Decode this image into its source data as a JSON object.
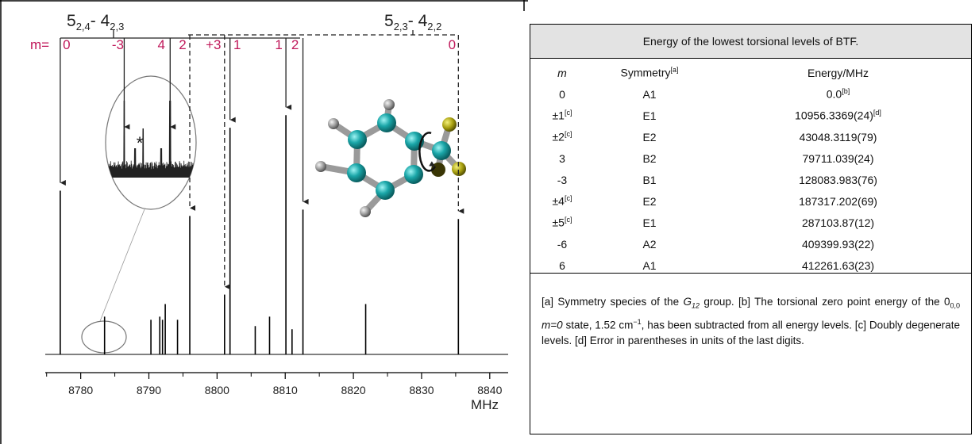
{
  "chart_data": {
    "type": "stick",
    "x_label": "MHz",
    "xlim": [
      8774.8,
      8842.7
    ],
    "xticks": [
      8780,
      8790,
      8800,
      8810,
      8820,
      8830,
      8840
    ],
    "minor_xticks": [
      8775,
      8785,
      8795,
      8805,
      8815,
      8825,
      8835
    ],
    "ylim": [
      0,
      100
    ],
    "color": "#000000",
    "label_color": "#c0185a",
    "x": [
      8777.0,
      8783.5,
      8790.3,
      8791.6,
      8792.0,
      8792.4,
      8794.2,
      8796.0,
      8801.1,
      8801.9,
      8805.6,
      8807.7,
      8810.1,
      8811.0,
      8812.6,
      8821.8,
      8835.4
    ],
    "values": [
      52,
      12,
      11,
      12,
      11,
      16,
      11,
      44,
      19,
      72,
      9,
      12,
      76,
      8,
      46,
      16,
      43
    ],
    "transitions": [
      {
        "parts": [
          {
            "text": "5"
          },
          {
            "text": "2,4",
            "sub": true
          },
          {
            "text": "- 4"
          },
          {
            "text": "2,3",
            "sub": true
          }
        ],
        "style": "solid"
      },
      {
        "parts": [
          {
            "text": "5"
          },
          {
            "text": "2,3",
            "sub": true
          },
          {
            "text": "- 4"
          },
          {
            "text": "2,2",
            "sub": true
          }
        ],
        "style": "dashed"
      }
    ],
    "m_prefix": "m=",
    "arrows": [
      {
        "label": "0",
        "x": 8777.0,
        "group": 0
      },
      {
        "label": "-3",
        "x": 8783.65,
        "group": 0,
        "inset": true
      },
      {
        "label": "4",
        "x": 8787.7,
        "group": 0,
        "inset": true
      },
      {
        "label": "2",
        "x": 8796.0,
        "group": 1
      },
      {
        "label": "+3",
        "x": 8801.1,
        "group": 1
      },
      {
        "label": "1",
        "x": 8801.9,
        "group": 0
      },
      {
        "label": "1",
        "x": 8810.1,
        "group": 0
      },
      {
        "label": "2",
        "x": 8812.6,
        "group": 0
      },
      {
        "label": "0",
        "x": 8835.4,
        "group": 1
      }
    ],
    "inset": {
      "xlim": [
        8782.5,
        8789.5
      ],
      "marker": "*"
    }
  },
  "table": {
    "title": "Energy of the lowest torsional levels of BTF.",
    "columns": [
      {
        "text": "m",
        "italic": true
      },
      {
        "text": "Symmetry",
        "sup": "[a]"
      },
      {
        "text": "Energy/MHz"
      }
    ],
    "rows": [
      [
        "0",
        "A1",
        {
          "text": "0.0",
          "sup": "[b]"
        }
      ],
      [
        {
          "text": "±1",
          "sup": "[c]"
        },
        "E1",
        {
          "text": "10956.3369(24)",
          "sup": "[d]"
        }
      ],
      [
        {
          "text": "±2",
          "sup": "[c]"
        },
        "E2",
        "43048.3119(79)"
      ],
      [
        "3",
        "B2",
        "79711.039(24)"
      ],
      [
        "-3",
        "B1",
        "128083.983(76)"
      ],
      [
        {
          "text": "±4",
          "sup": "[c]"
        },
        "E2",
        "187317.202(69)"
      ],
      [
        {
          "text": "±5",
          "sup": "[c]"
        },
        "E1",
        "287103.87(12)"
      ],
      [
        "-6",
        "A2",
        "409399.93(22)"
      ],
      [
        "6",
        "A1",
        "412261.63(23)"
      ]
    ],
    "footnote": [
      {
        "text": "[a] Symmetry species of the "
      },
      {
        "text": "G",
        "italic": true
      },
      {
        "text": "12",
        "italic": true,
        "sub": true
      },
      {
        "text": " group. [b] The torsional zero point energy of the 0"
      },
      {
        "text": "0,0",
        "sub": true
      },
      {
        "text": " m=0",
        "italic": true
      },
      {
        "text": " state, 1.52 cm"
      },
      {
        "text": "−1",
        "sup": true
      },
      {
        "text": ", has been subtracted from all energy levels. [c] Doubly degenerate levels. [d] Error in parentheses in units of the last digits."
      }
    ]
  }
}
